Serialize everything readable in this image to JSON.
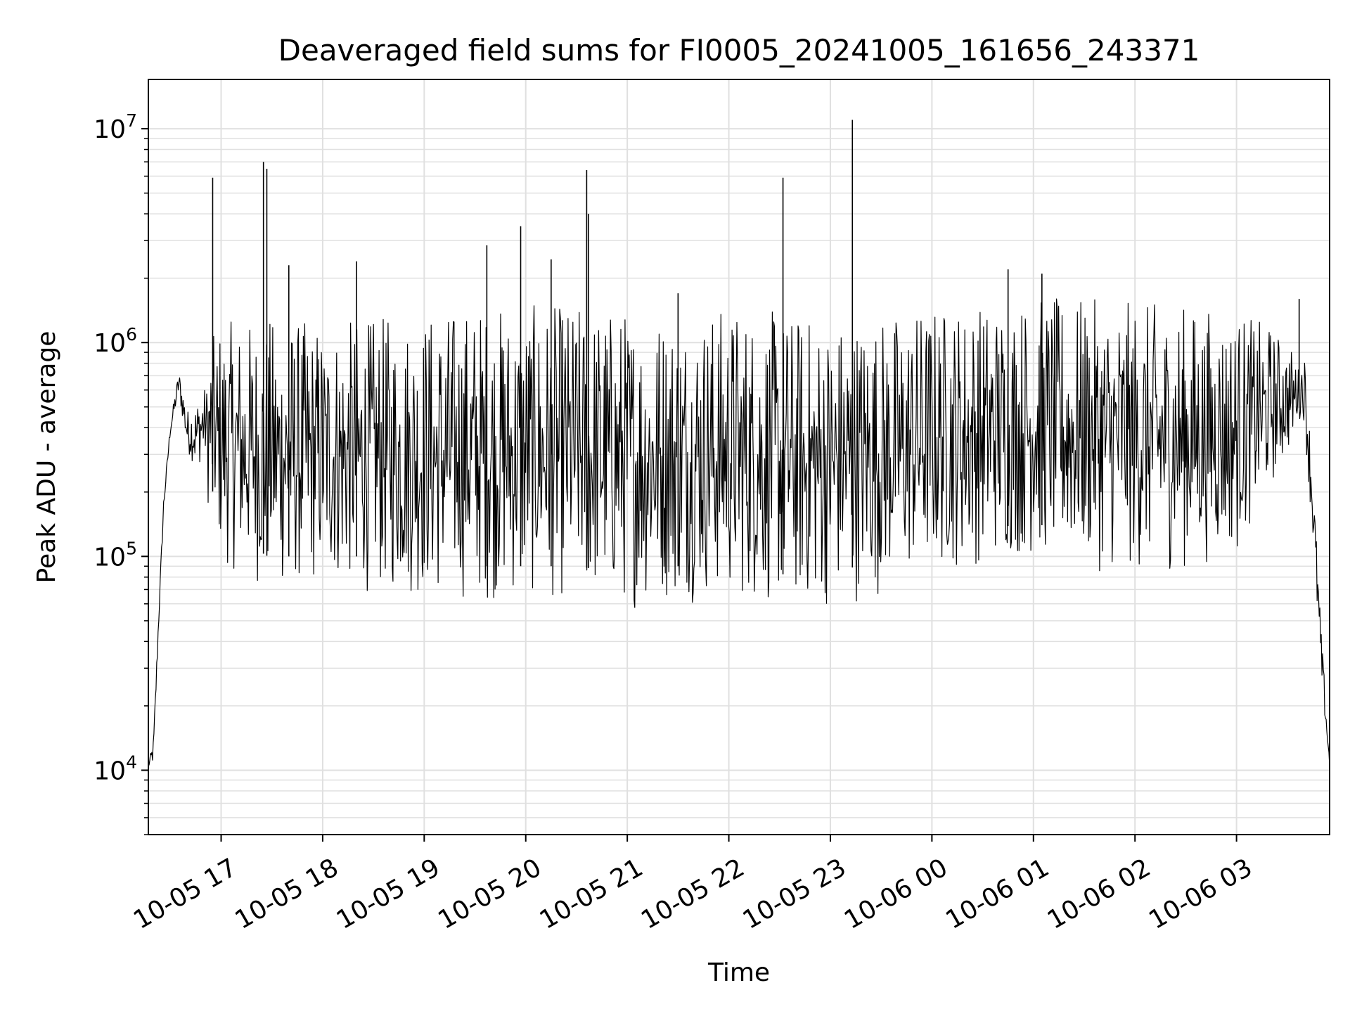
{
  "chart_data": {
    "type": "line",
    "title": "Deaveraged field sums for FI0005_20241005_161656_243371",
    "xlabel": "Time",
    "ylabel": "Peak ADU - average",
    "y_scale": "log",
    "ylim": [
      5000,
      17000000
    ],
    "xlim": [
      "2024-10-05 16:17",
      "2024-10-06 03:55"
    ],
    "grid": true,
    "line_color": "#000000",
    "grid_color": "#e0e0e0",
    "x_ticks": [
      {
        "value": "2024-10-05 17:00",
        "label": "10-05 17"
      },
      {
        "value": "2024-10-05 18:00",
        "label": "10-05 18"
      },
      {
        "value": "2024-10-05 19:00",
        "label": "10-05 19"
      },
      {
        "value": "2024-10-05 20:00",
        "label": "10-05 20"
      },
      {
        "value": "2024-10-05 21:00",
        "label": "10-05 21"
      },
      {
        "value": "2024-10-05 22:00",
        "label": "10-05 22"
      },
      {
        "value": "2024-10-05 23:00",
        "label": "10-05 23"
      },
      {
        "value": "2024-10-06 00:00",
        "label": "10-06 00"
      },
      {
        "value": "2024-10-06 01:00",
        "label": "10-06 01"
      },
      {
        "value": "2024-10-06 02:00",
        "label": "10-06 02"
      },
      {
        "value": "2024-10-06 03:00",
        "label": "10-06 03"
      }
    ],
    "y_ticks": [
      {
        "value": 10000,
        "base": "10",
        "exp": "4"
      },
      {
        "value": 100000,
        "base": "10",
        "exp": "5"
      },
      {
        "value": 1000000,
        "base": "10",
        "exp": "6"
      },
      {
        "value": 10000000,
        "base": "10",
        "exp": "7"
      }
    ],
    "series": [
      {
        "upper_envelope": {
          "x": [
            "2024-10-05 16:17",
            "2024-10-05 16:20",
            "2024-10-05 16:23",
            "2024-10-05 16:26",
            "2024-10-05 16:30",
            "2024-10-05 16:35",
            "2024-10-05 16:40",
            "2024-10-05 16:45",
            "2024-10-05 16:50",
            "2024-10-05 17:00",
            "2024-10-05 17:30",
            "2024-10-05 18:00",
            "2024-10-05 18:30",
            "2024-10-05 19:00",
            "2024-10-05 19:30",
            "2024-10-05 20:00",
            "2024-10-05 20:30",
            "2024-10-05 21:00",
            "2024-10-05 21:30",
            "2024-10-05 22:00",
            "2024-10-05 22:30",
            "2024-10-05 23:00",
            "2024-10-05 23:30",
            "2024-10-06 00:00",
            "2024-10-06 00:30",
            "2024-10-06 01:00",
            "2024-10-06 01:30",
            "2024-10-06 02:00",
            "2024-10-06 02:30",
            "2024-10-06 03:00",
            "2024-10-06 03:20",
            "2024-10-06 03:35",
            "2024-10-06 03:40",
            "2024-10-06 03:45",
            "2024-10-06 03:50",
            "2024-10-06 03:55"
          ],
          "y": [
            11000,
            16000,
            60000,
            200000,
            450000,
            850000,
            600000,
            750000,
            900000,
            1250000,
            1300000,
            1250000,
            1300000,
            1400000,
            1500000,
            1500000,
            1500000,
            1450000,
            1400000,
            1500000,
            1400000,
            1300000,
            1350000,
            1500000,
            1550000,
            1650000,
            1600000,
            1550000,
            1500000,
            1400000,
            1200000,
            900000,
            1300000,
            400000,
            60000,
            12000
          ]
        },
        "lower_envelope": {
          "x": [
            "2024-10-05 16:17",
            "2024-10-05 16:20",
            "2024-10-05 16:23",
            "2024-10-05 16:26",
            "2024-10-05 16:30",
            "2024-10-05 16:35",
            "2024-10-05 16:40",
            "2024-10-05 16:45",
            "2024-10-05 16:50",
            "2024-10-05 17:00",
            "2024-10-05 17:30",
            "2024-10-05 18:00",
            "2024-10-05 18:30",
            "2024-10-05 19:00",
            "2024-10-05 19:30",
            "2024-10-05 20:00",
            "2024-10-05 20:30",
            "2024-10-05 21:00",
            "2024-10-05 21:30",
            "2024-10-05 22:00",
            "2024-10-05 22:30",
            "2024-10-05 23:00",
            "2024-10-05 23:30",
            "2024-10-06 00:00",
            "2024-10-06 00:30",
            "2024-10-06 01:00",
            "2024-10-06 01:30",
            "2024-10-06 02:00",
            "2024-10-06 02:30",
            "2024-10-06 03:00",
            "2024-10-06 03:20",
            "2024-10-06 03:35",
            "2024-10-06 03:40",
            "2024-10-06 03:45",
            "2024-10-06 03:50",
            "2024-10-06 03:55"
          ],
          "y": [
            10000,
            9500,
            40000,
            150000,
            350000,
            500000,
            250000,
            180000,
            200000,
            90000,
            65000,
            70000,
            65000,
            60000,
            60000,
            60000,
            60000,
            55000,
            60000,
            60000,
            55000,
            55000,
            65000,
            80000,
            90000,
            95000,
            85000,
            80000,
            85000,
            100000,
            200000,
            350000,
            300000,
            80000,
            20000,
            9500
          ]
        },
        "spikes": {
          "x": [
            "2024-10-05 16:55",
            "2024-10-05 17:25",
            "2024-10-05 17:27",
            "2024-10-05 17:40",
            "2024-10-05 18:20",
            "2024-10-05 19:37",
            "2024-10-05 19:57",
            "2024-10-05 20:15",
            "2024-10-05 20:36",
            "2024-10-05 20:37",
            "2024-10-05 21:30",
            "2024-10-05 22:32",
            "2024-10-05 23:13",
            "2024-10-06 00:45",
            "2024-10-06 01:05",
            "2024-10-06 03:37"
          ],
          "y": [
            5900000,
            7000000,
            6500000,
            2300000,
            2400000,
            2850000,
            3500000,
            2450000,
            6400000,
            4000000,
            1700000,
            5900000,
            11000000,
            2200000,
            2100000,
            1600000
          ]
        }
      }
    ]
  }
}
